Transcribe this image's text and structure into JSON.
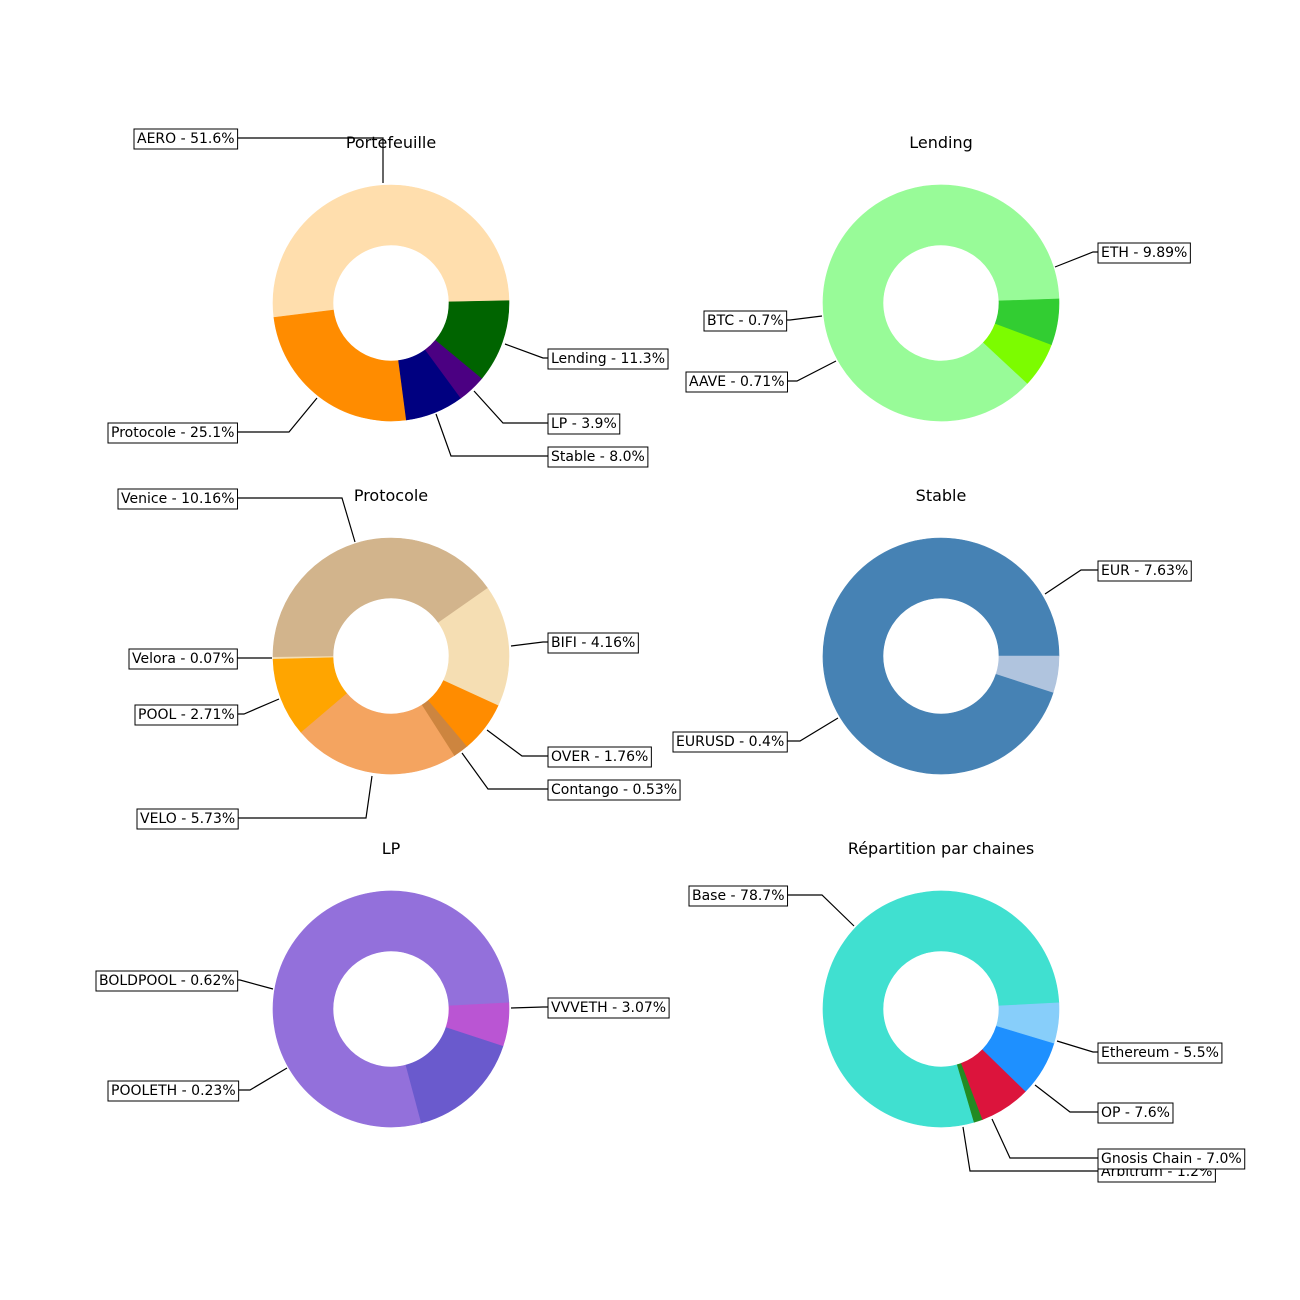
{
  "chart_data": [
    {
      "type": "pie",
      "donut": true,
      "title": "Portefeuille",
      "slices": [
        {
          "label": "AERO - 51.6%",
          "value": 51.6,
          "color": "#FFDEAD"
        },
        {
          "label": "Protocole - 25.1%",
          "value": 25.1,
          "color": "#FF8C00"
        },
        {
          "label": "Stable - 8.0%",
          "value": 8.0,
          "color": "#000080"
        },
        {
          "label": "LP - 3.9%",
          "value": 3.9,
          "color": "#4B0082"
        },
        {
          "label": "Lending - 11.3%",
          "value": 11.3,
          "color": "#006400"
        }
      ]
    },
    {
      "type": "pie",
      "donut": true,
      "title": "Lending",
      "slices": [
        {
          "label": "ETH - 9.89%",
          "value": 9.89,
          "color": "#98FB98"
        },
        {
          "label": "BTC - 0.7%",
          "value": 0.7,
          "color": "#7CFC00"
        },
        {
          "label": "AAVE - 0.71%",
          "value": 0.71,
          "color": "#32CD32"
        }
      ]
    },
    {
      "type": "pie",
      "donut": true,
      "title": "Protocole",
      "slices": [
        {
          "label": "Venice - 10.16%",
          "value": 10.16,
          "color": "#D2B48C"
        },
        {
          "label": "Velora - 0.07%",
          "value": 0.07,
          "color": "#F5DEB3"
        },
        {
          "label": "POOL - 2.71%",
          "value": 2.71,
          "color": "#FFA500"
        },
        {
          "label": "VELO - 5.73%",
          "value": 5.73,
          "color": "#F4A460"
        },
        {
          "label": "Contango - 0.53%",
          "value": 0.53,
          "color": "#CD853F"
        },
        {
          "label": "OVER - 1.76%",
          "value": 1.76,
          "color": "#FF8C00"
        },
        {
          "label": "BIFI - 4.16%",
          "value": 4.16,
          "color": "#F5DEB3"
        }
      ]
    },
    {
      "type": "pie",
      "donut": true,
      "title": "Stable",
      "slices": [
        {
          "label": "EUR - 7.63%",
          "value": 7.63,
          "color": "#4682B4"
        },
        {
          "label": "EURUSD - 0.4%",
          "value": 0.4,
          "color": "#B0C4DE"
        }
      ]
    },
    {
      "type": "pie",
      "donut": true,
      "title": "LP",
      "slices": [
        {
          "label": "VVVETH - 3.07%",
          "value": 3.07,
          "color": "#9370DB"
        },
        {
          "label": "BOLDPOOL - 0.62%",
          "value": 0.62,
          "color": "#6A5ACD"
        },
        {
          "label": "POOLETH - 0.23%",
          "value": 0.23,
          "color": "#BA55D3"
        }
      ]
    },
    {
      "type": "pie",
      "donut": true,
      "title": "Répartition par chaines",
      "slices": [
        {
          "label": "Base - 78.7%",
          "value": 78.7,
          "color": "#40E0D0"
        },
        {
          "label": "Arbitrum - 1.2%",
          "value": 1.2,
          "color": "#228B22"
        },
        {
          "label": "Gnosis Chain - 7.0%",
          "value": 7.0,
          "color": "#DC143C"
        },
        {
          "label": "OP - 7.6%",
          "value": 7.6,
          "color": "#1E90FF"
        },
        {
          "label": "Ethereum - 5.5%",
          "value": 5.5,
          "color": "#87CEFA"
        }
      ]
    }
  ]
}
